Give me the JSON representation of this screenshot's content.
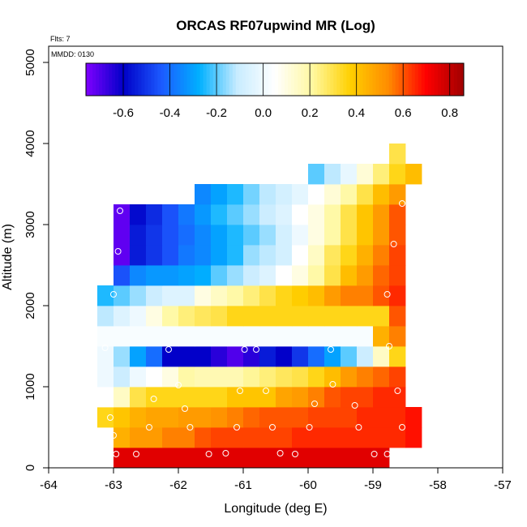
{
  "chart_data": {
    "type": "heatmap",
    "title": "ORCAS RF07upwind MR (Log)",
    "flts_label": "Flts: 7",
    "mmdd_label": "MMDD: 0130",
    "xlabel": "Longitude (deg E)",
    "ylabel": "Altitude (m)",
    "xlim": [
      -64,
      -57
    ],
    "ylim": [
      0,
      5200
    ],
    "x_ticks": [
      -64,
      -63,
      -62,
      -61,
      -60,
      -59,
      -58,
      -57
    ],
    "x_tick_labels": [
      "-64",
      "-63",
      "-62",
      "-61",
      "-60",
      "-59",
      "-58",
      "-57"
    ],
    "y_ticks": [
      0,
      1000,
      2000,
      3000,
      4000,
      5000
    ],
    "y_tick_labels": [
      "0",
      "1000",
      "2000",
      "3000",
      "4000",
      "5000"
    ],
    "colorbar": {
      "range": [
        -0.76,
        0.86
      ],
      "ticks": [
        -0.6,
        -0.4,
        -0.2,
        0.0,
        0.2,
        0.4,
        0.6,
        0.8
      ],
      "tick_labels": [
        "-0.6",
        "-0.4",
        "-0.2",
        "0.0",
        "0.2",
        "0.4",
        "0.6",
        "0.8"
      ],
      "colors": [
        "#7f00ff",
        "#0000c8",
        "#1c5aff",
        "#00b0ff",
        "#c8ecff",
        "#ffffff",
        "#fff8a0",
        "#ffd000",
        "#ff8c00",
        "#ff0000",
        "#a00000"
      ]
    },
    "cell_width_deg": 0.25,
    "cell_height_m": 250,
    "rows": [
      {
        "alt_start": 0,
        "lon_start": -63.0,
        "values": [
          0.75,
          0.75,
          0.75,
          0.75,
          0.75,
          0.75,
          0.75,
          0.75,
          0.75,
          0.75,
          0.75,
          0.75,
          0.75,
          0.75,
          0.75,
          0.75,
          0.75
        ]
      },
      {
        "alt_start": 250,
        "lon_start": -63.0,
        "values": [
          0.45,
          0.5,
          0.5,
          0.55,
          0.55,
          0.6,
          0.62,
          0.62,
          0.62,
          0.62,
          0.62,
          0.65,
          0.65,
          0.65,
          0.65,
          0.65,
          0.65,
          0.65,
          0.68
        ]
      },
      {
        "alt_start": 500,
        "lon_start": -63.25,
        "values": [
          0.35,
          0.4,
          0.45,
          0.48,
          0.48,
          0.5,
          0.5,
          0.52,
          0.55,
          0.58,
          0.6,
          0.6,
          0.6,
          0.62,
          0.62,
          0.62,
          0.65,
          0.65,
          0.65,
          0.68
        ]
      },
      {
        "alt_start": 750,
        "lon_start": -63.25,
        "values": [
          0.05,
          0.15,
          0.3,
          0.35,
          0.35,
          0.35,
          0.35,
          0.35,
          0.4,
          0.4,
          0.4,
          0.48,
          0.5,
          0.55,
          0.6,
          0.62,
          0.62,
          0.65,
          0.65
        ]
      },
      {
        "alt_start": 1000,
        "lon_start": -63.25,
        "values": [
          0.0,
          -0.1,
          0.0,
          0.05,
          0.1,
          0.2,
          0.18,
          0.18,
          0.18,
          0.22,
          0.25,
          0.28,
          0.3,
          0.35,
          0.42,
          0.5,
          0.55,
          0.58,
          0.62
        ]
      },
      {
        "alt_start": 1250,
        "lon_start": -63.25,
        "values": [
          0.0,
          -0.15,
          -0.3,
          -0.4,
          -0.6,
          -0.6,
          -0.6,
          -0.65,
          -0.7,
          -0.65,
          -0.55,
          -0.6,
          -0.5,
          -0.4,
          -0.3,
          -0.2,
          -0.1,
          0.15,
          0.35
        ]
      },
      {
        "alt_start": 1500,
        "lon_start": -63.25,
        "values": [
          0.03,
          0.03,
          0.03,
          0.03,
          0.03,
          0.03,
          0.03,
          0.03,
          0.03,
          0.03,
          0.03,
          0.03,
          0.03,
          0.03,
          0.03,
          0.03,
          0.03,
          0.45,
          0.55
        ]
      },
      {
        "alt_start": 1750,
        "lon_start": -63.25,
        "values": [
          -0.12,
          -0.05,
          0.0,
          0.1,
          0.2,
          0.25,
          0.28,
          0.3,
          0.35,
          0.35,
          0.35,
          0.35,
          0.35,
          0.35,
          0.35,
          0.35,
          0.35,
          0.35,
          0.6
        ]
      },
      {
        "alt_start": 2000,
        "lon_start": -63.25,
        "values": [
          -0.25,
          -0.2,
          -0.15,
          -0.1,
          -0.05,
          -0.05,
          0.1,
          0.15,
          0.2,
          0.25,
          0.3,
          0.35,
          0.38,
          0.42,
          0.5,
          0.55,
          0.55,
          0.6,
          0.65
        ]
      },
      {
        "alt_start": 2250,
        "lon_start": -63.0,
        "values": [
          -0.45,
          -0.35,
          -0.32,
          -0.32,
          -0.3,
          -0.28,
          -0.2,
          -0.15,
          -0.1,
          -0.05,
          0.05,
          0.1,
          0.2,
          0.3,
          0.42,
          0.5,
          0.58,
          0.62
        ]
      },
      {
        "alt_start": 2500,
        "lon_start": -63.0,
        "values": [
          -0.72,
          -0.55,
          -0.5,
          -0.45,
          -0.38,
          -0.35,
          -0.3,
          -0.25,
          -0.15,
          -0.12,
          -0.08,
          0.05,
          0.15,
          0.28,
          0.35,
          0.45,
          0.55,
          0.62
        ]
      },
      {
        "alt_start": 2750,
        "lon_start": -63.0,
        "values": [
          -0.72,
          -0.55,
          -0.5,
          -0.45,
          -0.4,
          -0.35,
          -0.3,
          -0.25,
          -0.2,
          -0.15,
          -0.08,
          0.0,
          0.1,
          0.2,
          0.3,
          0.4,
          0.5,
          0.6
        ]
      },
      {
        "alt_start": 3000,
        "lon_start": -63.0,
        "values": [
          -0.72,
          -0.58,
          -0.52,
          -0.45,
          -0.38,
          -0.32,
          -0.25,
          -0.2,
          -0.15,
          -0.1,
          -0.05,
          0.05,
          0.1,
          0.2,
          0.3,
          0.4,
          0.5,
          0.6
        ]
      },
      {
        "alt_start": 3250,
        "lon_start": -61.75,
        "values": [
          -0.35,
          -0.3,
          -0.25,
          -0.18,
          -0.12,
          -0.08,
          -0.03,
          0.05,
          0.12,
          0.2,
          0.3,
          0.42,
          0.5
        ]
      },
      {
        "alt_start": 3500,
        "lon_start": -60.0,
        "values": [
          -0.2,
          -0.12,
          -0.02,
          0.12,
          0.25,
          0.35,
          0.42
        ]
      },
      {
        "alt_start": 3750,
        "lon_start": -58.75,
        "values": [
          0.3
        ]
      }
    ],
    "obs_points": [
      {
        "lon": -62.9,
        "alt": 3170
      },
      {
        "lon": -62.93,
        "alt": 2670
      },
      {
        "lon": -63.0,
        "alt": 2140
      },
      {
        "lon": -63.13,
        "alt": 1480
      },
      {
        "lon": -63.13,
        "alt": 950
      },
      {
        "lon": -63.05,
        "alt": 620
      },
      {
        "lon": -63.0,
        "alt": 400
      },
      {
        "lon": -62.96,
        "alt": 170
      },
      {
        "lon": -62.65,
        "alt": 170
      },
      {
        "lon": -62.45,
        "alt": 500
      },
      {
        "lon": -62.38,
        "alt": 850
      },
      {
        "lon": -62.15,
        "alt": 1460
      },
      {
        "lon": -62.0,
        "alt": 1020
      },
      {
        "lon": -61.9,
        "alt": 730
      },
      {
        "lon": -61.82,
        "alt": 500
      },
      {
        "lon": -61.53,
        "alt": 170
      },
      {
        "lon": -61.27,
        "alt": 180
      },
      {
        "lon": -61.1,
        "alt": 500
      },
      {
        "lon": -61.05,
        "alt": 950
      },
      {
        "lon": -60.98,
        "alt": 1460
      },
      {
        "lon": -60.8,
        "alt": 1460
      },
      {
        "lon": -60.65,
        "alt": 950
      },
      {
        "lon": -60.55,
        "alt": 500
      },
      {
        "lon": -60.43,
        "alt": 180
      },
      {
        "lon": -60.2,
        "alt": 170
      },
      {
        "lon": -59.98,
        "alt": 500
      },
      {
        "lon": -59.9,
        "alt": 790
      },
      {
        "lon": -59.65,
        "alt": 1460
      },
      {
        "lon": -59.62,
        "alt": 1030
      },
      {
        "lon": -59.28,
        "alt": 770
      },
      {
        "lon": -59.22,
        "alt": 500
      },
      {
        "lon": -58.98,
        "alt": 170
      },
      {
        "lon": -58.78,
        "alt": 170
      },
      {
        "lon": -58.78,
        "alt": 2140
      },
      {
        "lon": -58.75,
        "alt": 1500
      },
      {
        "lon": -58.68,
        "alt": 2760
      },
      {
        "lon": -58.62,
        "alt": 950
      },
      {
        "lon": -58.55,
        "alt": 500
      },
      {
        "lon": -58.55,
        "alt": 3260
      }
    ]
  }
}
